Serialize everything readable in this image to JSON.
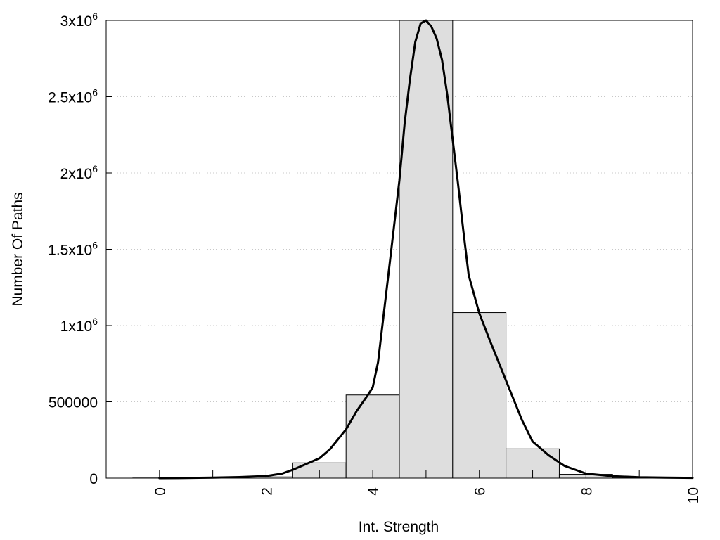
{
  "chart_data": {
    "type": "bar",
    "xlabel": "Int. Strength",
    "ylabel": "Number Of Paths",
    "xlim": [
      -1,
      10
    ],
    "ylim": [
      0,
      3000000
    ],
    "x_ticks": [
      {
        "value": 0,
        "label": "0"
      },
      {
        "value": 2,
        "label": "2"
      },
      {
        "value": 4,
        "label": "4"
      },
      {
        "value": 6,
        "label": "6"
      },
      {
        "value": 8,
        "label": "8"
      },
      {
        "value": 10,
        "label": "10"
      }
    ],
    "x_minor_ticks": [
      1,
      3,
      5,
      7,
      9
    ],
    "y_ticks": [
      {
        "value": 0,
        "base": "0",
        "exp": ""
      },
      {
        "value": 500000,
        "base": "500000",
        "exp": ""
      },
      {
        "value": 1000000,
        "base": "1x10",
        "exp": "6"
      },
      {
        "value": 1500000,
        "base": "1.5x10",
        "exp": "6"
      },
      {
        "value": 2000000,
        "base": "2x10",
        "exp": "6"
      },
      {
        "value": 2500000,
        "base": "2.5x10",
        "exp": "6"
      },
      {
        "value": 3000000,
        "base": "3x10",
        "exp": "6"
      }
    ],
    "grid": "horizontal-dotted",
    "bin_width": 1,
    "histogram": {
      "x": [
        0,
        1,
        2,
        3,
        4,
        5,
        6,
        7,
        8,
        9
      ],
      "values": [
        1000,
        2000,
        8000,
        100000,
        545000,
        3000000,
        1085000,
        192000,
        25000,
        5000
      ]
    },
    "fit_curve": {
      "x": [
        0,
        0.5,
        1,
        1.5,
        2,
        2.3,
        2.5,
        2.7,
        3,
        3.2,
        3.5,
        3.7,
        3.9,
        4,
        4.1,
        4.3,
        4.5,
        4.6,
        4.7,
        4.8,
        4.9,
        5,
        5.1,
        5.2,
        5.3,
        5.4,
        5.5,
        5.6,
        5.7,
        5.8,
        6,
        6.2,
        6.5,
        6.8,
        7,
        7.3,
        7.6,
        8,
        8.5,
        9,
        9.5,
        10
      ],
      "y": [
        0,
        1000,
        3000,
        7000,
        14000,
        30000,
        55000,
        85000,
        130000,
        190000,
        320000,
        440000,
        540000,
        595000,
        760000,
        1350000,
        1950000,
        2330000,
        2620000,
        2860000,
        2980000,
        3000000,
        2960000,
        2880000,
        2740000,
        2510000,
        2220000,
        1930000,
        1620000,
        1330000,
        1080000,
        900000,
        640000,
        380000,
        240000,
        150000,
        80000,
        30000,
        13000,
        6000,
        3000,
        2000
      ]
    }
  },
  "colors": {
    "bar_fill": "#dedede",
    "bar_stroke": "#000000",
    "curve": "#000000",
    "grid": "#c8c8c8"
  }
}
